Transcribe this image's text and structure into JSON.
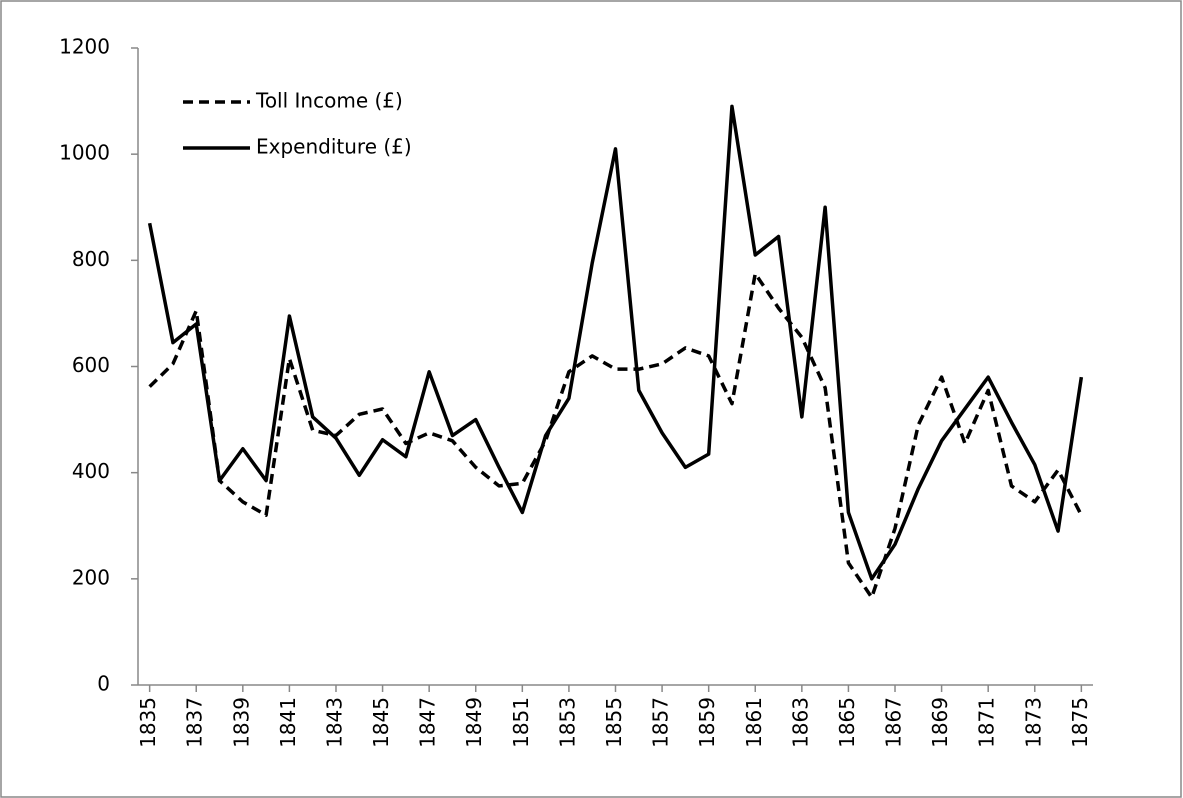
{
  "chart_data": {
    "type": "line",
    "x": [
      1835,
      1836,
      1837,
      1838,
      1839,
      1840,
      1841,
      1842,
      1843,
      1844,
      1845,
      1846,
      1847,
      1848,
      1849,
      1850,
      1851,
      1852,
      1853,
      1854,
      1855,
      1856,
      1857,
      1858,
      1859,
      1860,
      1861,
      1862,
      1863,
      1864,
      1865,
      1866,
      1867,
      1868,
      1869,
      1870,
      1871,
      1872,
      1873,
      1874,
      1875
    ],
    "series": [
      {
        "name": "Toll Income (£)",
        "color": "#000000",
        "dash": true,
        "values": [
          562,
          605,
          705,
          385,
          345,
          320,
          615,
          480,
          470,
          510,
          520,
          455,
          475,
          460,
          410,
          375,
          380,
          460,
          590,
          620,
          595,
          595,
          605,
          635,
          620,
          530,
          775,
          710,
          655,
          560,
          230,
          165,
          295,
          490,
          580,
          455,
          555,
          375,
          345,
          405,
          320
        ]
      },
      {
        "name": "Expenditure (£)",
        "color": "#000000",
        "dash": false,
        "values": [
          870,
          645,
          680,
          385,
          445,
          385,
          695,
          505,
          465,
          395,
          462,
          430,
          590,
          470,
          500,
          410,
          325,
          470,
          540,
          795,
          1010,
          555,
          475,
          410,
          435,
          1090,
          810,
          845,
          505,
          900,
          325,
          200,
          265,
          370,
          460,
          520,
          580,
          495,
          415,
          290,
          580
        ]
      }
    ],
    "xlim": [
      1834.5,
      1875.5
    ],
    "xticks": [
      1835,
      1837,
      1839,
      1841,
      1843,
      1845,
      1847,
      1849,
      1851,
      1853,
      1855,
      1857,
      1859,
      1861,
      1863,
      1865,
      1867,
      1869,
      1871,
      1873,
      1875
    ],
    "ylim": [
      0,
      1200
    ],
    "yticks": [
      0,
      200,
      400,
      600,
      800,
      1000,
      1200
    ],
    "legend": "upper-left"
  }
}
